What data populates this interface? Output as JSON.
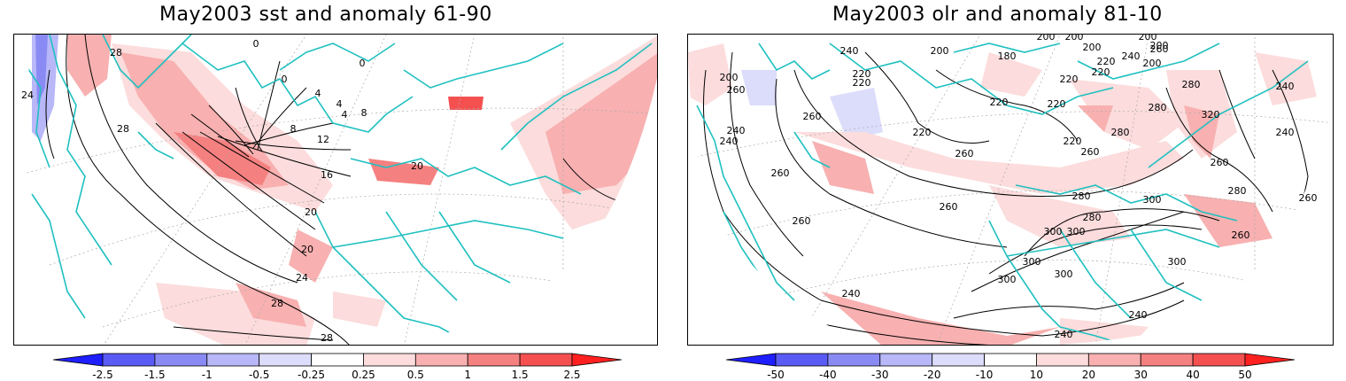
{
  "left_panel": {
    "title": "May2003 sst and anomaly 61-90",
    "contour_labels": [
      "0",
      "0",
      "0",
      "4",
      "4",
      "4",
      "8",
      "8",
      "12",
      "16",
      "20",
      "20",
      "20",
      "24",
      "24",
      "28",
      "28",
      "28",
      "28"
    ],
    "colorbar": {
      "labels": [
        "-2.5",
        "-1.5",
        "-1",
        "-0.5",
        "-0.25",
        "0.25",
        "0.5",
        "1",
        "1.5",
        "2.5"
      ],
      "colors": [
        "#1e1eff",
        "#5a5af5",
        "#8a8af5",
        "#b8b8f8",
        "#dcdcfb",
        "#ffffff",
        "#fcdcdc",
        "#f8b0b0",
        "#f58080",
        "#f55050",
        "#ff2020"
      ]
    }
  },
  "right_panel": {
    "title": "May2003 olr and anomaly 81-10",
    "contour_labels": [
      "200",
      "200",
      "200",
      "200",
      "200",
      "200",
      "200",
      "200",
      "180",
      "220",
      "220",
      "220",
      "220",
      "220",
      "220",
      "220",
      "220",
      "220",
      "240",
      "240",
      "240",
      "240",
      "240",
      "240",
      "240",
      "240",
      "240",
      "260",
      "260",
      "260",
      "260",
      "260",
      "260",
      "260",
      "260",
      "260",
      "260",
      "260",
      "280",
      "280",
      "280",
      "280",
      "280",
      "280",
      "300",
      "300",
      "300",
      "300",
      "300",
      "300",
      "300",
      "320"
    ],
    "colorbar": {
      "labels": [
        "-50",
        "-40",
        "-30",
        "-20",
        "-10",
        "10",
        "20",
        "30",
        "40",
        "50"
      ],
      "colors": [
        "#1e1eff",
        "#5a5af5",
        "#8a8af5",
        "#b8b8f8",
        "#dcdcfb",
        "#ffffff",
        "#fcdcdc",
        "#f8b0b0",
        "#f58080",
        "#f55050",
        "#ff2020"
      ]
    }
  },
  "colors": {
    "coastline": "#20c0c0",
    "contour": "#000000",
    "grid": "#aaaaaa"
  }
}
